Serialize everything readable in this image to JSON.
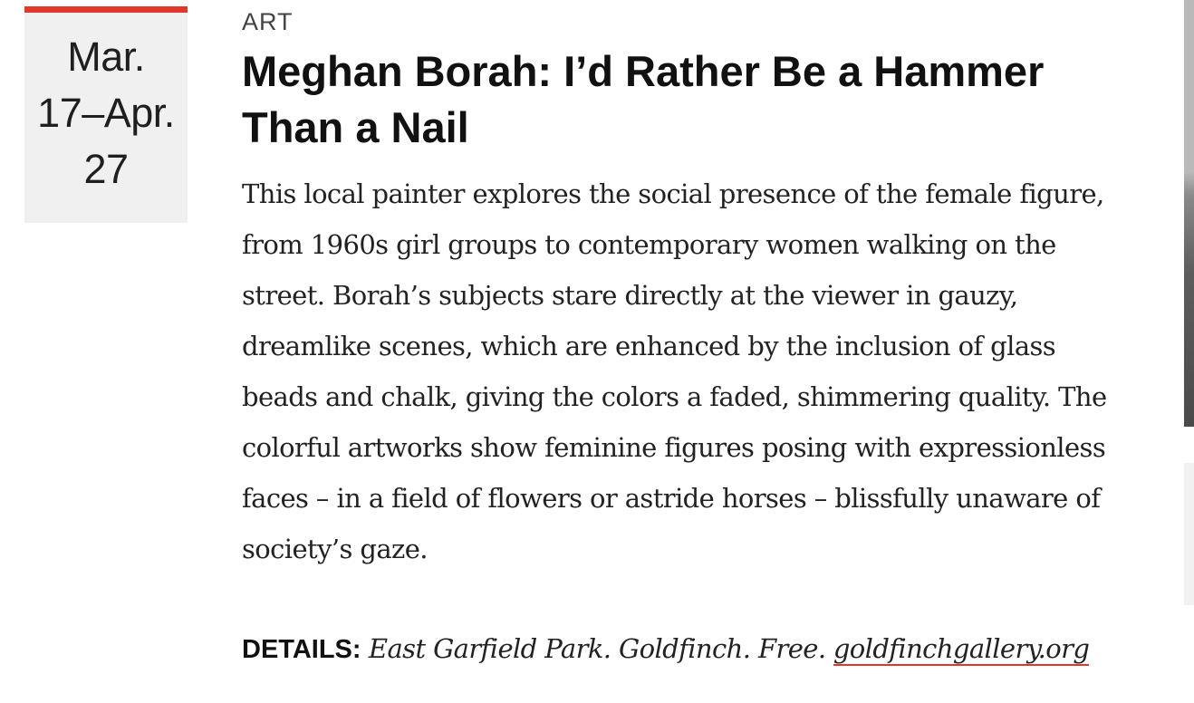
{
  "event": {
    "date_lines": [
      "Mar.",
      "17–Apr.",
      "27"
    ],
    "category": "ART",
    "title": "Meghan Borah: I’d Rather Be a Hammer Than a Nail",
    "description": "This local painter explores the social presence of the female figure, from 1960s girl groups to contemporary women walking on the street. Borah’s subjects stare directly at the viewer in gauzy, dreamlike scenes, which are enhanced by the inclusion of glass beads and chalk, giving the colors a faded, shimmering quality. The colorful artworks show feminine figures posing with expressionless faces – in a field of flowers or astride horses – blissfully unaware of society’s gaze.",
    "details": {
      "label": "DETAILS:",
      "text": "East Garfield Park. Goldfinch. Free.",
      "link_text": "goldfinchgallery.org"
    }
  },
  "colors": {
    "accent": "#e0382c",
    "date_box_bg": "#f0f0f0",
    "text": "#111111"
  }
}
